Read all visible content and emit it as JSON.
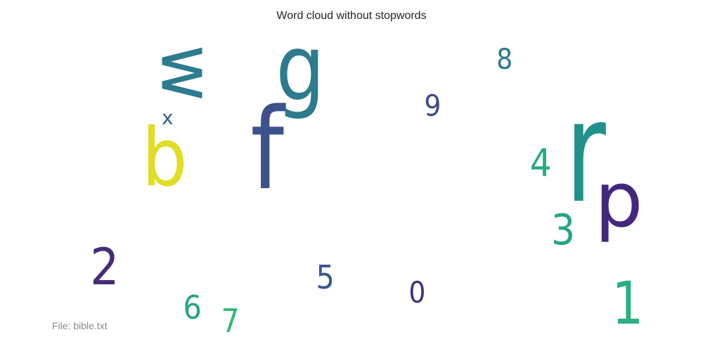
{
  "title": "Word cloud without stopwords",
  "footer": "File: bible.txt",
  "words": [
    {
      "id": "r",
      "text": "r",
      "color": "#21918c"
    },
    {
      "id": "f",
      "text": "f",
      "color": "#3b528b"
    },
    {
      "id": "b",
      "text": "b",
      "color": "#e1dd26"
    },
    {
      "id": "g",
      "text": "g",
      "color": "#2c7b8e"
    },
    {
      "id": "w",
      "text": "w",
      "color": "#2c7b8e",
      "rotated": true
    },
    {
      "id": "p",
      "text": "p",
      "color": "#44277e"
    },
    {
      "id": "1",
      "text": "1",
      "color": "#2bb07f"
    },
    {
      "id": "2",
      "text": "2",
      "color": "#472a7a"
    },
    {
      "id": "3",
      "text": "3",
      "color": "#25a585"
    },
    {
      "id": "4",
      "text": "4",
      "color": "#28ab81"
    },
    {
      "id": "5",
      "text": "5",
      "color": "#39568c"
    },
    {
      "id": "6",
      "text": "6",
      "color": "#26a584"
    },
    {
      "id": "7",
      "text": "7",
      "color": "#35b779"
    },
    {
      "id": "8",
      "text": "8",
      "color": "#2a788e"
    },
    {
      "id": "9",
      "text": "9",
      "color": "#3e4a89"
    },
    {
      "id": "0",
      "text": "0",
      "color": "#46307e"
    },
    {
      "id": "x",
      "text": "x",
      "color": "#3b5d8b"
    }
  ]
}
